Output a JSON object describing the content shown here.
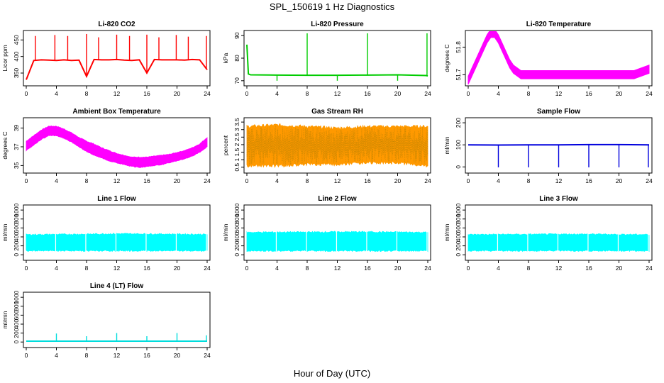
{
  "figure": {
    "title": "SPL_150619  1 Hz Diagnostics",
    "xlabel": "Hour of Day (UTC)"
  },
  "chart_data": [
    {
      "type": "line",
      "title": "Li-820 CO2",
      "ylabel": "Licor ppm",
      "color": "#ff0000",
      "xlim": [
        0,
        24
      ],
      "ylim": [
        320,
        470
      ],
      "xticks": [
        0,
        4,
        8,
        12,
        16,
        20,
        24
      ],
      "yticks": [
        350,
        400,
        450
      ],
      "x": [
        0,
        1,
        2,
        3,
        4,
        5,
        6,
        7,
        8,
        9,
        10,
        11,
        12,
        13,
        14,
        15,
        16,
        17,
        18,
        19,
        20,
        21,
        22,
        23,
        24
      ],
      "values": [
        330,
        388,
        390,
        389,
        388,
        390,
        388,
        389,
        340,
        391,
        390,
        390,
        391,
        389,
        388,
        390,
        350,
        391,
        390,
        390,
        390,
        389,
        391,
        390,
        360
      ],
      "spikes": [
        {
          "x": 1.2,
          "y": 462
        },
        {
          "x": 3.8,
          "y": 465
        },
        {
          "x": 5.5,
          "y": 462
        },
        {
          "x": 8.0,
          "y": 468
        },
        {
          "x": 9.6,
          "y": 458
        },
        {
          "x": 12.0,
          "y": 466
        },
        {
          "x": 13.7,
          "y": 462
        },
        {
          "x": 16.0,
          "y": 466
        },
        {
          "x": 17.6,
          "y": 458
        },
        {
          "x": 19.9,
          "y": 465
        },
        {
          "x": 21.5,
          "y": 460
        },
        {
          "x": 23.9,
          "y": 462
        }
      ]
    },
    {
      "type": "line",
      "title": "Li-820 Pressure",
      "ylabel": "kPa",
      "color": "#00cc00",
      "xlim": [
        0,
        24
      ],
      "ylim": [
        69,
        91
      ],
      "xticks": [
        0,
        4,
        8,
        12,
        16,
        20,
        24
      ],
      "yticks": [
        70,
        80,
        90
      ],
      "x": [
        0,
        0.2,
        0.5,
        4,
        8,
        12,
        16,
        20,
        23.8,
        24
      ],
      "values": [
        86,
        73,
        72.6,
        72.5,
        72.4,
        72.4,
        72.5,
        72.6,
        72.3,
        72.1
      ],
      "spikes": [
        {
          "x": 8.0,
          "y": 91
        },
        {
          "x": 16.0,
          "y": 91
        },
        {
          "x": 23.9,
          "y": 91
        },
        {
          "x": 4.0,
          "y": 70
        },
        {
          "x": 12.0,
          "y": 70
        },
        {
          "x": 20.0,
          "y": 70
        }
      ]
    },
    {
      "type": "line",
      "title": "Li-820 Temperature",
      "ylabel": "degrees C",
      "color": "#ff00ff",
      "xlim": [
        0,
        24
      ],
      "ylim": [
        51.67,
        51.85
      ],
      "xticks": [
        0,
        4,
        8,
        12,
        16,
        20,
        24
      ],
      "yticks": [
        51.7,
        51.8
      ],
      "x": [
        0,
        0.5,
        1,
        1.5,
        2,
        2.5,
        3,
        3.5,
        4,
        4.5,
        5,
        5.5,
        6,
        6.5,
        7,
        10,
        14,
        18,
        22,
        24
      ],
      "values": [
        51.68,
        51.71,
        51.74,
        51.77,
        51.8,
        51.83,
        51.85,
        51.85,
        51.83,
        51.8,
        51.77,
        51.74,
        51.72,
        51.71,
        51.7,
        51.7,
        51.7,
        51.7,
        51.7,
        51.72
      ],
      "band": 0.03
    },
    {
      "type": "area",
      "title": "Ambient Box Temperature",
      "ylabel": "degrees C",
      "color": "#ff00ff",
      "xlim": [
        0,
        24
      ],
      "ylim": [
        34.5,
        39.8
      ],
      "xticks": [
        0,
        4,
        8,
        12,
        16,
        20,
        24
      ],
      "yticks": [
        35,
        37,
        39
      ],
      "x": [
        0,
        1,
        2,
        3,
        4,
        5,
        6,
        7,
        8,
        9,
        10,
        11,
        12,
        13,
        14,
        15,
        16,
        17,
        18,
        19,
        20,
        21,
        22,
        23,
        24
      ],
      "upper": [
        37.6,
        38.2,
        38.8,
        39.2,
        39.2,
        38.9,
        38.5,
        38.0,
        37.6,
        37.3,
        36.9,
        36.6,
        36.3,
        36.1,
        35.9,
        35.9,
        35.9,
        36.0,
        36.1,
        36.2,
        36.4,
        36.6,
        36.9,
        37.3,
        38.0
      ],
      "lower": [
        36.6,
        37.2,
        37.8,
        38.2,
        38.2,
        37.9,
        37.5,
        37.0,
        36.5,
        36.1,
        35.8,
        35.5,
        35.3,
        35.1,
        34.9,
        34.8,
        34.9,
        35.0,
        35.1,
        35.3,
        35.5,
        35.7,
        36.0,
        36.4,
        37.0
      ]
    },
    {
      "type": "area",
      "title": "Gas Stream RH",
      "ylabel": "percent",
      "color": "#ff9900",
      "xlim": [
        0,
        24
      ],
      "ylim": [
        0.3,
        3.6
      ],
      "xticks": [
        0,
        4,
        8,
        12,
        16,
        20,
        24
      ],
      "yticks": [
        0.5,
        1.0,
        1.5,
        2.0,
        2.5,
        3.0,
        3.5
      ],
      "x": [
        0,
        4,
        8,
        12,
        16,
        20,
        24
      ],
      "upper": [
        3.2,
        3.3,
        3.2,
        3.1,
        3.2,
        3.2,
        3.2
      ],
      "lower": [
        0.6,
        0.6,
        0.7,
        0.7,
        0.8,
        0.8,
        0.6
      ]
    },
    {
      "type": "line",
      "title": "Sample Flow",
      "ylabel": "ml/min",
      "color": "#0000dd",
      "xlim": [
        0,
        24
      ],
      "ylim": [
        -15,
        210
      ],
      "xticks": [
        0,
        4,
        8,
        12,
        16,
        20,
        24
      ],
      "yticks": [
        0,
        100,
        200
      ],
      "x": [
        0,
        4,
        8,
        12,
        16,
        20,
        24
      ],
      "values": [
        100,
        99,
        100,
        100,
        101,
        101,
        100
      ],
      "spikes": [
        {
          "x": 4.0,
          "y": -2
        },
        {
          "x": 8.0,
          "y": -2
        },
        {
          "x": 12.0,
          "y": -2
        },
        {
          "x": 16.0,
          "y": -2
        },
        {
          "x": 20.0,
          "y": -2
        },
        {
          "x": 23.9,
          "y": -2
        }
      ]
    },
    {
      "type": "area",
      "title": "Line 1 Flow",
      "ylabel": "ml/min",
      "color": "#00ffff",
      "xlim": [
        0,
        24
      ],
      "ylim": [
        -60,
        1050
      ],
      "xticks": [
        0,
        4,
        8,
        12,
        16,
        20,
        24
      ],
      "yticks": [
        0,
        200,
        400,
        600,
        800,
        1000
      ],
      "x": [
        0,
        4,
        8,
        12,
        16,
        20,
        24
      ],
      "upper": [
        450,
        455,
        460,
        470,
        465,
        460,
        455
      ],
      "lower": [
        90,
        90,
        90,
        90,
        90,
        90,
        90
      ],
      "gaps": [
        3.9,
        7.9,
        11.9,
        15.9,
        19.9,
        23.9
      ]
    },
    {
      "type": "area",
      "title": "Line 2 Flow",
      "ylabel": "ml/min",
      "color": "#00ffff",
      "xlim": [
        0,
        24
      ],
      "ylim": [
        -60,
        1050
      ],
      "xticks": [
        0,
        4,
        8,
        12,
        16,
        20,
        24
      ],
      "yticks": [
        0,
        200,
        400,
        600,
        800,
        1000
      ],
      "x": [
        0,
        4,
        8,
        12,
        16,
        20,
        24
      ],
      "upper": [
        500,
        505,
        505,
        510,
        510,
        505,
        500
      ],
      "lower": [
        90,
        90,
        90,
        90,
        90,
        90,
        90
      ],
      "gaps": [
        3.9,
        7.9,
        11.9,
        15.9,
        19.9,
        23.9
      ]
    },
    {
      "type": "area",
      "title": "Line 3 Flow",
      "ylabel": "ml/min",
      "color": "#00ffff",
      "xlim": [
        0,
        24
      ],
      "ylim": [
        -60,
        1050
      ],
      "xticks": [
        0,
        4,
        8,
        12,
        16,
        20,
        24
      ],
      "yticks": [
        0,
        200,
        400,
        600,
        800,
        1000
      ],
      "x": [
        0,
        4,
        8,
        12,
        16,
        20,
        24
      ],
      "upper": [
        450,
        455,
        455,
        460,
        460,
        455,
        450
      ],
      "lower": [
        90,
        90,
        90,
        90,
        90,
        90,
        90
      ],
      "gaps": [
        3.9,
        7.9,
        11.9,
        15.9,
        19.9,
        23.9
      ]
    },
    {
      "type": "line",
      "title": "Line 4 (LT) Flow",
      "ylabel": "ml/min",
      "color": "#00dddd",
      "xlim": [
        0,
        24
      ],
      "ylim": [
        -60,
        1050
      ],
      "xticks": [
        0,
        4,
        8,
        12,
        16,
        20,
        24
      ],
      "yticks": [
        0,
        200,
        400,
        600,
        800,
        1000
      ],
      "x": [
        0,
        4,
        8,
        12,
        16,
        20,
        24
      ],
      "values": [
        20,
        20,
        20,
        20,
        20,
        20,
        20
      ],
      "spikes": [
        {
          "x": 4.0,
          "y": 190
        },
        {
          "x": 8.0,
          "y": 130
        },
        {
          "x": 12.0,
          "y": 200
        },
        {
          "x": 16.0,
          "y": 130
        },
        {
          "x": 20.0,
          "y": 200
        },
        {
          "x": 23.9,
          "y": 150
        }
      ]
    }
  ]
}
